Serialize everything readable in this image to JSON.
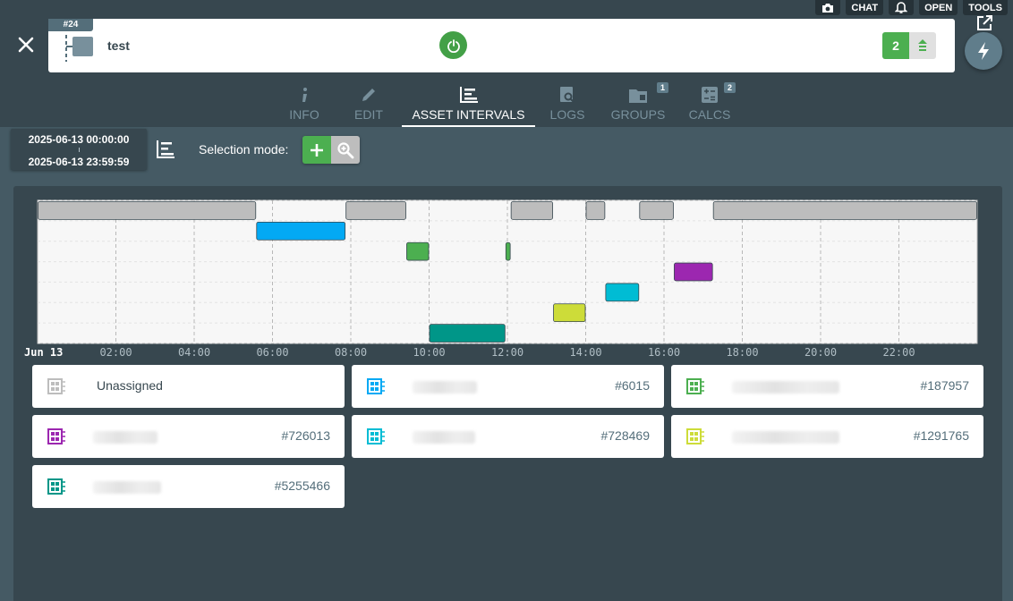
{
  "toolbar": {
    "camera_icon": "camera-icon",
    "chat_label": "CHAT",
    "bell_icon": "bell-icon",
    "open_label": "OPEN",
    "tools_label": "TOOLS"
  },
  "header": {
    "id_tag": "#24",
    "asset_name": "test",
    "count": "2"
  },
  "tabs": [
    {
      "label": "INFO",
      "icon": "info-icon",
      "active": false
    },
    {
      "label": "EDIT",
      "icon": "pencil-icon",
      "active": false
    },
    {
      "label": "ASSET INTERVALS",
      "icon": "interval-chart-icon",
      "active": true
    },
    {
      "label": "LOGS",
      "icon": "log-search-icon",
      "active": false
    },
    {
      "label": "GROUPS",
      "icon": "folder-icon",
      "active": false,
      "badge": "1"
    },
    {
      "label": "CALCS",
      "icon": "calculator-icon",
      "active": false,
      "badge": "2"
    }
  ],
  "date_range": {
    "start": "2025-06-13 00:00:00",
    "end": "2025-06-13 23:59:59"
  },
  "selection": {
    "label": "Selection mode:"
  },
  "colors": {
    "unassigned": "#bdbdbd",
    "blue": "#03a9f4",
    "green": "#4caf50",
    "purple": "#9c27b0",
    "cyan": "#00bcd4",
    "lime": "#cddc39",
    "teal": "#009688"
  },
  "chart_data": {
    "type": "timeline",
    "x_ticks": [
      "Jun 13",
      "02:00",
      "04:00",
      "06:00",
      "08:00",
      "10:00",
      "12:00",
      "14:00",
      "16:00",
      "18:00",
      "20:00",
      "22:00"
    ],
    "xlim": [
      "00:00",
      "24:00"
    ],
    "rows": [
      {
        "color_key": "unassigned",
        "intervals": [
          [
            "00:00",
            "05:35"
          ],
          [
            "07:52",
            "09:25"
          ],
          [
            "12:05",
            "13:10"
          ],
          [
            "14:00",
            "14:30"
          ],
          [
            "15:22",
            "16:15"
          ],
          [
            "17:15",
            "24:00"
          ]
        ]
      },
      {
        "color_key": "blue",
        "intervals": [
          [
            "05:35",
            "07:52"
          ]
        ]
      },
      {
        "color_key": "green",
        "intervals": [
          [
            "09:25",
            "10:00"
          ],
          [
            "11:57",
            "12:05"
          ]
        ]
      },
      {
        "color_key": "purple",
        "intervals": [
          [
            "16:15",
            "17:15"
          ]
        ]
      },
      {
        "color_key": "cyan",
        "intervals": [
          [
            "14:30",
            "15:22"
          ]
        ]
      },
      {
        "color_key": "lime",
        "intervals": [
          [
            "13:10",
            "14:00"
          ]
        ]
      },
      {
        "color_key": "teal",
        "intervals": [
          [
            "10:00",
            "11:57"
          ]
        ]
      }
    ]
  },
  "legend": [
    {
      "name": "Unassigned",
      "id": "",
      "color_key": "unassigned"
    },
    {
      "name": "",
      "id": "#6015",
      "color_key": "blue"
    },
    {
      "name": "",
      "id": "#187957",
      "color_key": "green"
    },
    {
      "name": "",
      "id": "#726013",
      "color_key": "purple"
    },
    {
      "name": "",
      "id": "#728469",
      "color_key": "cyan"
    },
    {
      "name": "",
      "id": "#1291765",
      "color_key": "lime"
    },
    {
      "name": "",
      "id": "#5255466",
      "color_key": "teal"
    }
  ]
}
